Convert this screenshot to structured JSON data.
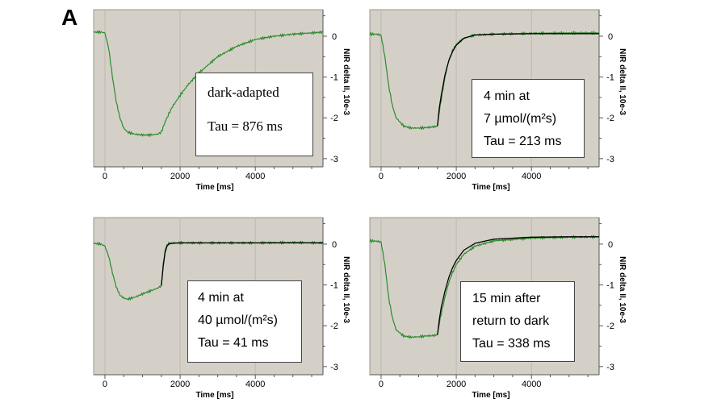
{
  "figure": {
    "panel_letter": "A"
  },
  "colors": {
    "panel_bg": "#d4d0c8",
    "trace": "#2e8b2e",
    "fit": "#000000",
    "grid": "#bdb9b1",
    "axis": "#555555"
  },
  "chart_data": [
    {
      "type": "line",
      "xlabel": "Time [ms]",
      "ylabel": "NIR delta II, 10e-3",
      "xticks": [
        0,
        2000,
        4000
      ],
      "yticks": [
        0,
        -1,
        -2,
        -3
      ],
      "xlim": [
        -300,
        5800
      ],
      "ylim": [
        -3.2,
        0.65
      ],
      "annotation": [
        "dark-adapted",
        "Tau = 876 ms"
      ],
      "series": [
        {
          "role": "trace",
          "x": [
            -300,
            -100,
            0,
            100,
            200,
            300,
            400,
            500,
            600,
            800,
            1000,
            1200,
            1400,
            1500,
            1600,
            1700,
            1800,
            2000,
            2200,
            2500,
            3000,
            3500,
            4000,
            4500,
            5000,
            5500,
            5800
          ],
          "y": [
            0.1,
            0.1,
            0.08,
            -0.3,
            -1.0,
            -1.6,
            -2.0,
            -2.25,
            -2.35,
            -2.4,
            -2.42,
            -2.42,
            -2.4,
            -2.35,
            -2.1,
            -1.9,
            -1.72,
            -1.45,
            -1.2,
            -0.9,
            -0.5,
            -0.25,
            -0.08,
            0.0,
            0.05,
            0.08,
            0.1
          ]
        }
      ]
    },
    {
      "type": "line",
      "xlabel": "Time [ms]",
      "ylabel": "NIR delta II, 10e-3",
      "xticks": [
        0,
        2000,
        4000
      ],
      "yticks": [
        0,
        -1,
        -2,
        -3
      ],
      "xlim": [
        -300,
        5800
      ],
      "ylim": [
        -3.2,
        0.65
      ],
      "annotation": [
        "4 min at",
        "7 µmol/(m²s)",
        "Tau = 213 ms"
      ],
      "series": [
        {
          "role": "trace",
          "x": [
            -300,
            -100,
            0,
            100,
            200,
            300,
            400,
            600,
            800,
            1000,
            1200,
            1400,
            1500,
            1550,
            1600,
            1700,
            1800,
            1900,
            2000,
            2200,
            2500,
            3000,
            4000,
            5000,
            5800
          ],
          "y": [
            0.05,
            0.05,
            0.02,
            -0.5,
            -1.2,
            -1.7,
            -2.0,
            -2.2,
            -2.25,
            -2.25,
            -2.24,
            -2.22,
            -2.2,
            -1.85,
            -1.55,
            -1.0,
            -0.6,
            -0.35,
            -0.2,
            -0.05,
            0.03,
            0.05,
            0.07,
            0.08,
            0.08
          ]
        },
        {
          "role": "fit",
          "x": [
            1500,
            1550,
            1600,
            1700,
            1800,
            1900,
            2000,
            2200,
            2500,
            3000,
            4000,
            5000,
            5800
          ],
          "y": [
            -2.2,
            -1.75,
            -1.45,
            -0.95,
            -0.6,
            -0.38,
            -0.22,
            -0.05,
            0.03,
            0.05,
            0.06,
            0.06,
            0.06
          ]
        }
      ]
    },
    {
      "type": "line",
      "xlabel": "Time [ms]",
      "ylabel": "NIR delta II, 10e-3",
      "xticks": [
        0,
        2000,
        4000
      ],
      "yticks": [
        0,
        -1,
        -2,
        -3
      ],
      "xlim": [
        -300,
        5800
      ],
      "ylim": [
        -3.2,
        0.65
      ],
      "annotation": [
        "4 min at",
        "40 µmol/(m²s)",
        "Tau = 41 ms"
      ],
      "series": [
        {
          "role": "trace",
          "x": [
            -300,
            -100,
            0,
            100,
            200,
            300,
            400,
            500,
            600,
            800,
            1000,
            1200,
            1400,
            1500,
            1550,
            1600,
            1650,
            1700,
            1800,
            2000,
            3000,
            4000,
            5000,
            5800
          ],
          "y": [
            0.02,
            0.0,
            -0.05,
            -0.3,
            -0.7,
            -1.05,
            -1.25,
            -1.32,
            -1.35,
            -1.3,
            -1.22,
            -1.15,
            -1.08,
            -1.02,
            -0.5,
            -0.15,
            -0.02,
            0.02,
            0.03,
            0.03,
            0.03,
            0.03,
            0.04,
            0.03
          ]
        },
        {
          "role": "fit",
          "x": [
            1500,
            1550,
            1600,
            1650,
            1700,
            1800,
            2000,
            3000,
            4000,
            5000,
            5800
          ],
          "y": [
            -1.02,
            -0.55,
            -0.2,
            -0.05,
            0.0,
            0.02,
            0.03,
            0.03,
            0.03,
            0.03,
            0.03
          ]
        }
      ]
    },
    {
      "type": "line",
      "xlabel": "Time [ms]",
      "ylabel": "NIR delta II, 10e-3",
      "xticks": [
        0,
        2000,
        4000
      ],
      "yticks": [
        0,
        -1,
        -2,
        -3
      ],
      "xlim": [
        -300,
        5800
      ],
      "ylim": [
        -3.2,
        0.65
      ],
      "annotation": [
        "15 min after",
        "return to dark",
        "Tau = 338 ms"
      ],
      "series": [
        {
          "role": "trace",
          "x": [
            -300,
            -100,
            0,
            100,
            200,
            300,
            400,
            600,
            800,
            1000,
            1200,
            1400,
            1500,
            1550,
            1600,
            1700,
            1800,
            1900,
            2000,
            2200,
            2500,
            3000,
            4000,
            5000,
            5800
          ],
          "y": [
            0.08,
            0.07,
            0.05,
            -0.5,
            -1.3,
            -1.8,
            -2.1,
            -2.25,
            -2.28,
            -2.27,
            -2.25,
            -2.24,
            -2.22,
            -1.95,
            -1.7,
            -1.3,
            -0.95,
            -0.7,
            -0.5,
            -0.25,
            -0.05,
            0.08,
            0.15,
            0.17,
            0.18
          ]
        },
        {
          "role": "fit",
          "x": [
            1500,
            1550,
            1600,
            1700,
            1800,
            1900,
            2000,
            2200,
            2500,
            3000,
            4000,
            5000,
            5800
          ],
          "y": [
            -2.22,
            -1.85,
            -1.55,
            -1.15,
            -0.82,
            -0.58,
            -0.4,
            -0.15,
            0.02,
            0.12,
            0.17,
            0.18,
            0.18
          ]
        }
      ]
    }
  ]
}
